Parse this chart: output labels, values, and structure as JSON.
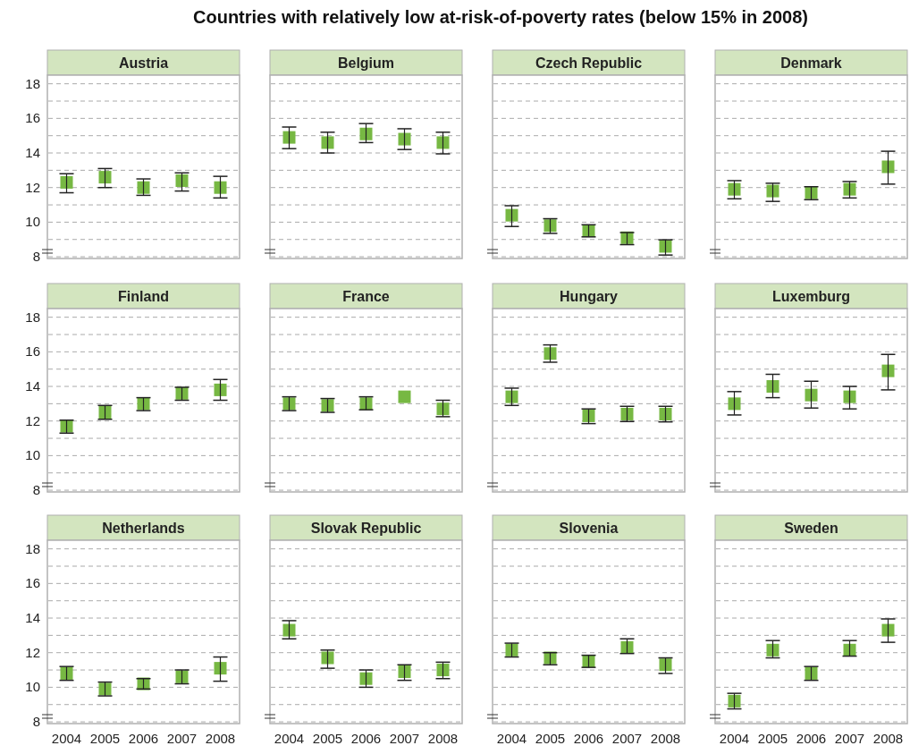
{
  "chart_data": [
    {
      "type": "scatter",
      "title": "Austria",
      "annotations": [
        "Countries with relatively low at-risk-of-poverty rates (below 15% in 2008)"
      ],
      "categories": [
        "2004",
        "2005",
        "2006",
        "2007",
        "2008"
      ],
      "series": [
        {
          "color": "#77b843",
          "values": [
            12.3,
            12.6,
            12.0,
            12.4,
            12.0
          ],
          "errors": [
            [
              11.7,
              12.8
            ],
            [
              12.0,
              13.1
            ],
            [
              11.55,
              12.5
            ],
            [
              11.8,
              12.85
            ],
            [
              11.4,
              12.65
            ]
          ]
        }
      ],
      "ylim": [
        7.9,
        18.5
      ],
      "yticks": [
        8,
        {
          "value": 9,
          "label": null
        },
        10,
        {
          "value": 11,
          "label": null
        },
        12,
        {
          "value": 13,
          "label": null
        },
        14,
        {
          "value": 15,
          "label": null
        },
        16,
        {
          "value": 17,
          "label": null
        },
        18
      ],
      "grid": "y",
      "marker": "square",
      "tick_labels": "y"
    },
    {
      "type": "scatter",
      "title": "Belgium",
      "categories": [
        "2004",
        "2005",
        "2006",
        "2007",
        "2008"
      ],
      "series": [
        {
          "color": "#77b843",
          "values": [
            14.9,
            14.6,
            15.1,
            14.8,
            14.6
          ],
          "errors": [
            [
              14.25,
              15.5
            ],
            [
              14.0,
              15.2
            ],
            [
              14.6,
              15.7
            ],
            [
              14.2,
              15.4
            ],
            [
              13.95,
              15.2
            ]
          ]
        }
      ],
      "ylim": [
        7.9,
        18.5
      ],
      "yticks": [
        8,
        {
          "value": 9,
          "label": null
        },
        10,
        {
          "value": 11,
          "label": null
        },
        12,
        {
          "value": 13,
          "label": null
        },
        14,
        {
          "value": 15,
          "label": null
        },
        16,
        {
          "value": 17,
          "label": null
        },
        18
      ],
      "grid": "y",
      "marker": "square",
      "tick_labels": false
    },
    {
      "type": "scatter",
      "title": "Czech Republic",
      "categories": [
        "2004",
        "2005",
        "2006",
        "2007",
        "2008"
      ],
      "series": [
        {
          "color": "#77b843",
          "values": [
            10.4,
            9.8,
            9.5,
            9.1,
            8.6
          ],
          "errors": [
            [
              9.75,
              10.95
            ],
            [
              9.35,
              10.2
            ],
            [
              9.15,
              9.85
            ],
            [
              8.7,
              9.4
            ],
            [
              8.1,
              8.98
            ]
          ]
        }
      ],
      "ylim": [
        7.9,
        18.5
      ],
      "yticks": [
        8,
        {
          "value": 9,
          "label": null
        },
        10,
        {
          "value": 11,
          "label": null
        },
        12,
        {
          "value": 13,
          "label": null
        },
        14,
        {
          "value": 15,
          "label": null
        },
        16,
        {
          "value": 17,
          "label": null
        },
        18
      ],
      "grid": "y",
      "marker": "square",
      "tick_labels": false
    },
    {
      "type": "scatter",
      "title": "Denmark",
      "categories": [
        "2004",
        "2005",
        "2006",
        "2007",
        "2008"
      ],
      "series": [
        {
          "color": "#77b843",
          "values": [
            11.9,
            11.8,
            11.7,
            11.9,
            13.2
          ],
          "errors": [
            [
              11.35,
              12.4
            ],
            [
              11.2,
              12.25
            ],
            [
              11.3,
              12.05
            ],
            [
              11.4,
              12.35
            ],
            [
              12.2,
              14.1
            ]
          ]
        }
      ],
      "ylim": [
        7.9,
        18.5
      ],
      "yticks": [
        8,
        {
          "value": 9,
          "label": null
        },
        10,
        {
          "value": 11,
          "label": null
        },
        12,
        {
          "value": 13,
          "label": null
        },
        14,
        {
          "value": 15,
          "label": null
        },
        16,
        {
          "value": 17,
          "label": null
        },
        18
      ],
      "grid": "y",
      "marker": "square",
      "tick_labels": false
    },
    {
      "type": "scatter",
      "title": "Finland",
      "categories": [
        "2004",
        "2005",
        "2006",
        "2007",
        "2008"
      ],
      "series": [
        {
          "color": "#77b843",
          "values": [
            11.7,
            12.5,
            13.0,
            13.6,
            13.8
          ],
          "errors": [
            [
              11.3,
              12.05
            ],
            [
              12.1,
              12.9
            ],
            [
              12.6,
              13.35
            ],
            [
              13.2,
              13.95
            ],
            [
              13.2,
              14.4
            ]
          ]
        }
      ],
      "ylim": [
        7.9,
        18.5
      ],
      "yticks": [
        8,
        {
          "value": 9,
          "label": null
        },
        10,
        {
          "value": 11,
          "label": null
        },
        12,
        {
          "value": 13,
          "label": null
        },
        14,
        {
          "value": 15,
          "label": null
        },
        16,
        {
          "value": 17,
          "label": null
        },
        18
      ],
      "grid": "y",
      "marker": "square",
      "tick_labels": "y"
    },
    {
      "type": "scatter",
      "title": "France",
      "categories": [
        "2004",
        "2005",
        "2006",
        "2007",
        "2008"
      ],
      "series": [
        {
          "color": "#77b843",
          "values": [
            13.0,
            12.9,
            13.0,
            13.4,
            12.7
          ],
          "errors": [
            [
              12.6,
              13.4
            ],
            [
              12.5,
              13.3
            ],
            [
              12.65,
              13.4
            ],
            null,
            [
              12.25,
              13.2
            ]
          ]
        }
      ],
      "ylim": [
        7.9,
        18.5
      ],
      "yticks": [
        8,
        {
          "value": 9,
          "label": null
        },
        10,
        {
          "value": 11,
          "label": null
        },
        12,
        {
          "value": 13,
          "label": null
        },
        14,
        {
          "value": 15,
          "label": null
        },
        16,
        {
          "value": 17,
          "label": null
        },
        18
      ],
      "grid": "y",
      "marker": "square",
      "tick_labels": false
    },
    {
      "type": "scatter",
      "title": "Hungary",
      "categories": [
        "2004",
        "2005",
        "2006",
        "2007",
        "2008"
      ],
      "series": [
        {
          "color": "#77b843",
          "values": [
            13.4,
            15.9,
            12.3,
            12.4,
            12.4
          ],
          "errors": [
            [
              12.9,
              13.9
            ],
            [
              15.4,
              16.4
            ],
            [
              11.85,
              12.7
            ],
            [
              11.97,
              12.85
            ],
            [
              11.95,
              12.85
            ]
          ]
        }
      ],
      "ylim": [
        7.9,
        18.5
      ],
      "yticks": [
        8,
        {
          "value": 9,
          "label": null
        },
        10,
        {
          "value": 11,
          "label": null
        },
        12,
        {
          "value": 13,
          "label": null
        },
        14,
        {
          "value": 15,
          "label": null
        },
        16,
        {
          "value": 17,
          "label": null
        },
        18
      ],
      "grid": "y",
      "marker": "square",
      "tick_labels": false
    },
    {
      "type": "scatter",
      "title": "Luxemburg",
      "categories": [
        "2004",
        "2005",
        "2006",
        "2007",
        "2008"
      ],
      "series": [
        {
          "color": "#77b843",
          "values": [
            13.0,
            14.0,
            13.5,
            13.4,
            14.9
          ],
          "errors": [
            [
              12.35,
              13.7
            ],
            [
              13.35,
              14.7
            ],
            [
              12.75,
              14.3
            ],
            [
              12.7,
              14.0
            ],
            [
              13.8,
              15.85
            ]
          ]
        }
      ],
      "ylim": [
        7.9,
        18.5
      ],
      "yticks": [
        8,
        {
          "value": 9,
          "label": null
        },
        10,
        {
          "value": 11,
          "label": null
        },
        12,
        {
          "value": 13,
          "label": null
        },
        14,
        {
          "value": 15,
          "label": null
        },
        16,
        {
          "value": 17,
          "label": null
        },
        18
      ],
      "grid": "y",
      "marker": "square",
      "tick_labels": false
    },
    {
      "type": "scatter",
      "title": "Netherlands",
      "categories": [
        "2004",
        "2005",
        "2006",
        "2007",
        "2008"
      ],
      "series": [
        {
          "color": "#77b843",
          "values": [
            10.8,
            9.9,
            10.2,
            10.6,
            11.1
          ],
          "errors": [
            [
              10.4,
              11.2
            ],
            [
              9.5,
              10.3
            ],
            [
              9.9,
              10.5
            ],
            [
              10.2,
              11.0
            ],
            [
              10.35,
              11.75
            ]
          ]
        }
      ],
      "ylim": [
        7.9,
        18.5
      ],
      "yticks": [
        8,
        {
          "value": 9,
          "label": null
        },
        10,
        {
          "value": 11,
          "label": null
        },
        12,
        {
          "value": 13,
          "label": null
        },
        14,
        {
          "value": 15,
          "label": null
        },
        16,
        {
          "value": 17,
          "label": null
        },
        18
      ],
      "grid": "y",
      "marker": "square"
    },
    {
      "type": "scatter",
      "title": "Slovak Republic",
      "categories": [
        "2004",
        "2005",
        "2006",
        "2007",
        "2008"
      ],
      "series": [
        {
          "color": "#77b843",
          "values": [
            13.3,
            11.7,
            10.5,
            10.9,
            11.0
          ],
          "errors": [
            [
              12.8,
              13.85
            ],
            [
              11.1,
              12.15
            ],
            [
              10.0,
              11.0
            ],
            [
              10.4,
              11.3
            ],
            [
              10.5,
              11.45
            ]
          ]
        }
      ],
      "ylim": [
        7.9,
        18.5
      ],
      "yticks": [
        8,
        {
          "value": 9,
          "label": null
        },
        10,
        {
          "value": 11,
          "label": null
        },
        12,
        {
          "value": 13,
          "label": null
        },
        14,
        {
          "value": 15,
          "label": null
        },
        16,
        {
          "value": 17,
          "label": null
        },
        18
      ],
      "grid": "y",
      "marker": "square",
      "tick_labels": "x"
    },
    {
      "type": "scatter",
      "title": "Slovenia",
      "categories": [
        "2004",
        "2005",
        "2006",
        "2007",
        "2008"
      ],
      "series": [
        {
          "color": "#77b843",
          "values": [
            12.15,
            11.7,
            11.5,
            12.3,
            11.3
          ],
          "errors": [
            [
              11.75,
              12.55
            ],
            [
              11.3,
              12.0
            ],
            [
              11.15,
              11.85
            ],
            [
              11.95,
              12.8
            ],
            [
              10.8,
              11.7
            ]
          ]
        }
      ],
      "ylim": [
        7.9,
        18.5
      ],
      "yticks": [
        8,
        {
          "value": 9,
          "label": null
        },
        10,
        {
          "value": 11,
          "label": null
        },
        12,
        {
          "value": 13,
          "label": null
        },
        14,
        {
          "value": 15,
          "label": null
        },
        16,
        {
          "value": 17,
          "label": null
        },
        18
      ],
      "grid": "y",
      "marker": "square",
      "tick_labels": "x"
    },
    {
      "type": "scatter",
      "title": "Sweden",
      "categories": [
        "2004",
        "2005",
        "2006",
        "2007",
        "2008"
      ],
      "series": [
        {
          "color": "#77b843",
          "values": [
            9.2,
            12.15,
            10.8,
            12.15,
            13.3
          ],
          "errors": [
            [
              8.75,
              9.65
            ],
            [
              11.7,
              12.7
            ],
            [
              10.4,
              11.2
            ],
            [
              11.8,
              12.7
            ],
            [
              12.6,
              13.95
            ]
          ]
        }
      ],
      "ylim": [
        7.9,
        18.5
      ],
      "yticks": [
        8,
        {
          "value": 9,
          "label": null
        },
        10,
        {
          "value": 11,
          "label": null
        },
        12,
        {
          "value": 13,
          "label": null
        },
        14,
        {
          "value": 15,
          "label": null
        },
        16,
        {
          "value": 17,
          "label": null
        },
        18
      ],
      "grid": "y",
      "marker": "square",
      "tick_labels": "x"
    }
  ]
}
